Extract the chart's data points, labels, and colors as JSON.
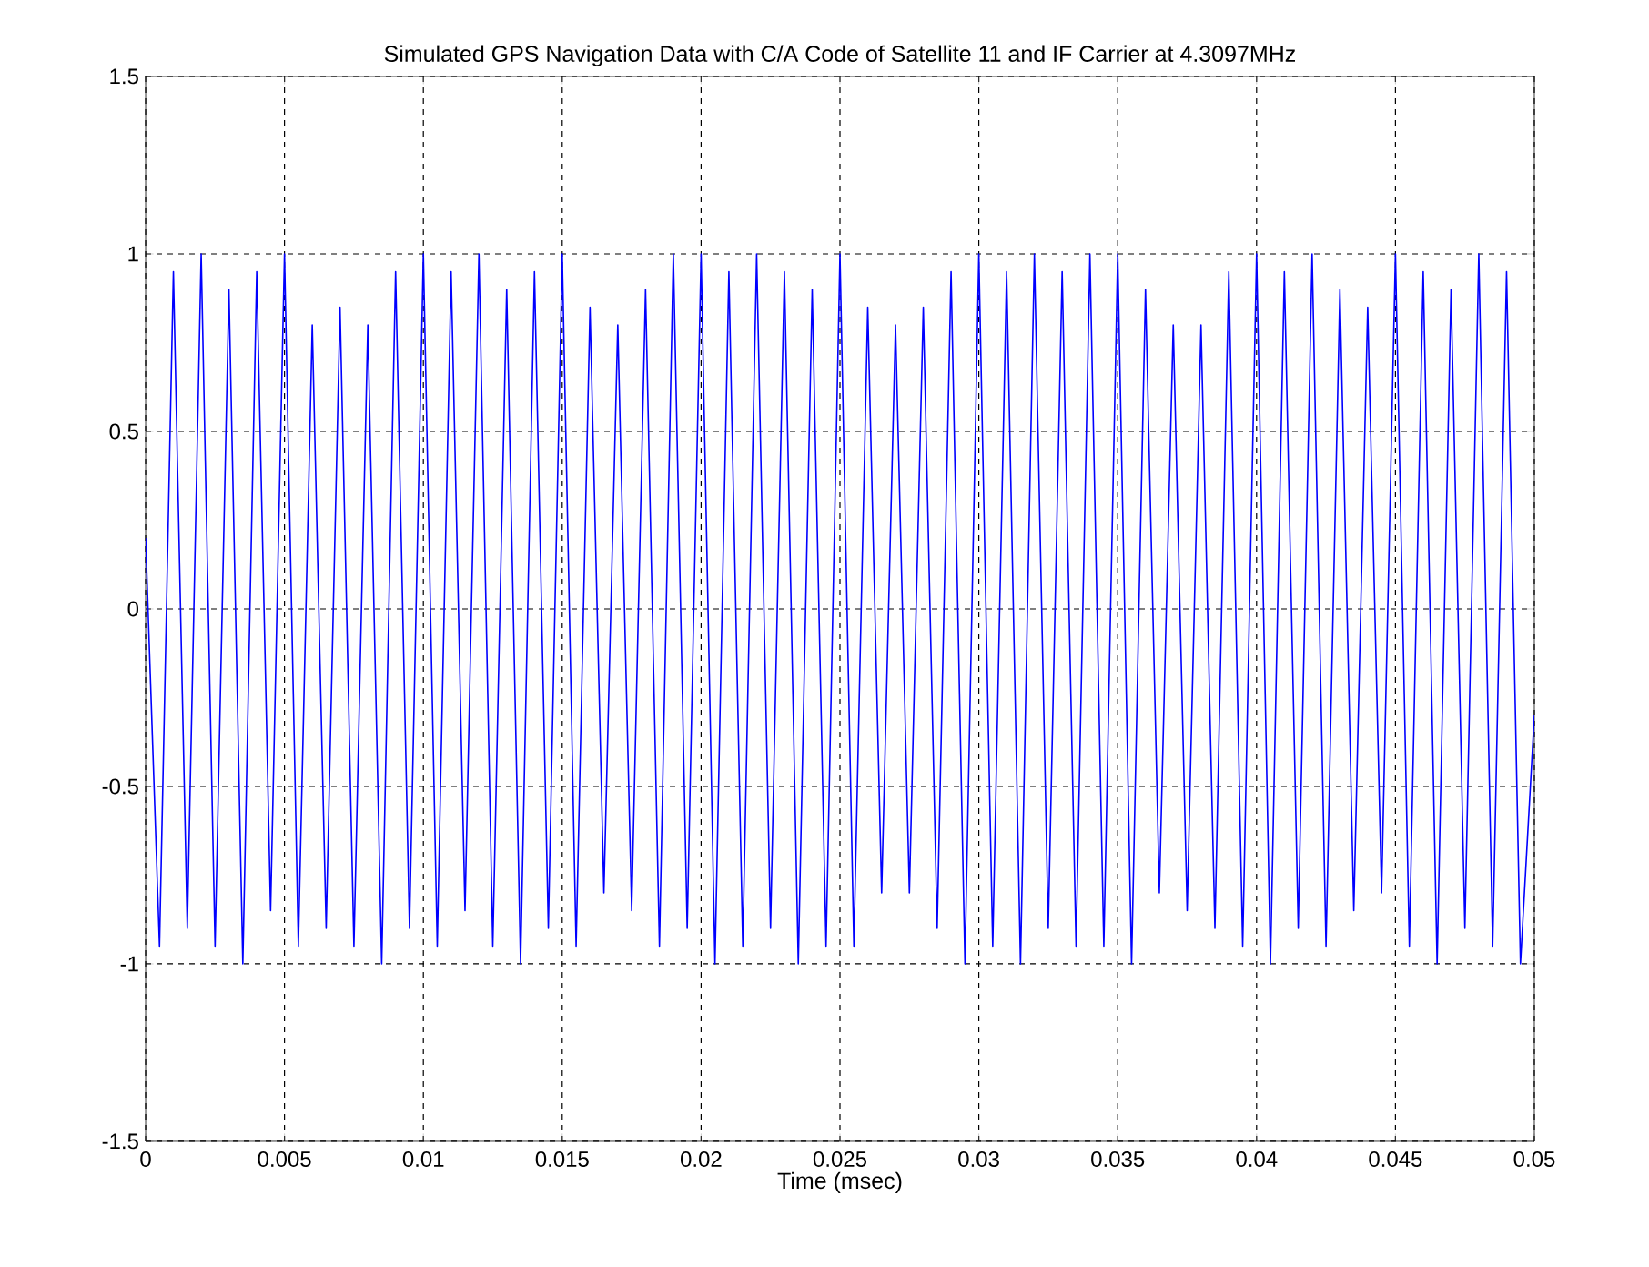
{
  "chart_data": {
    "type": "line",
    "title": "Simulated GPS Navigation Data with C/A Code of Satellite 11 and IF Carrier at 4.3097MHz",
    "xlabel": "Time (msec)",
    "xlim": [
      0,
      0.05
    ],
    "ylim": [
      -1.5,
      1.5
    ],
    "xticks": [
      0,
      0.005,
      0.01,
      0.015,
      0.02,
      0.025,
      0.03,
      0.035,
      0.04,
      0.045,
      0.05
    ],
    "yticks": [
      -1.5,
      -1,
      -0.5,
      0,
      0.5,
      1,
      1.5
    ],
    "grid": true,
    "line_style": "solid",
    "marker": "none",
    "series": [
      {
        "color": "#0000ff",
        "x": [
          0,
          0.0005,
          0.001,
          0.0015,
          0.002,
          0.0025,
          0.003,
          0.0035,
          0.004,
          0.0045,
          0.005,
          0.0055,
          0.006,
          0.0065,
          0.007,
          0.0075,
          0.008,
          0.0085,
          0.009,
          0.0095,
          0.01,
          0.0105,
          0.011,
          0.0115,
          0.012,
          0.0125,
          0.013,
          0.0135,
          0.014,
          0.0145,
          0.015,
          0.0155,
          0.016,
          0.0165,
          0.017,
          0.0175,
          0.018,
          0.0185,
          0.019,
          0.0195,
          0.02,
          0.0205,
          0.021,
          0.0215,
          0.022,
          0.0225,
          0.023,
          0.0235,
          0.024,
          0.0245,
          0.025,
          0.0255,
          0.026,
          0.0265,
          0.027,
          0.0275,
          0.028,
          0.0285,
          0.029,
          0.0295,
          0.03,
          0.0305,
          0.031,
          0.0315,
          0.032,
          0.0325,
          0.033,
          0.0335,
          0.034,
          0.0345,
          0.035,
          0.0355,
          0.036,
          0.0365,
          0.037,
          0.0375,
          0.038,
          0.0385,
          0.039,
          0.0395,
          0.04,
          0.0405,
          0.041,
          0.0415,
          0.042,
          0.0425,
          0.043,
          0.0435,
          0.044,
          0.0445,
          0.045,
          0.0455,
          0.046,
          0.0465,
          0.047,
          0.0475,
          0.048,
          0.0485,
          0.049,
          0.0495,
          0.05
        ],
        "values": [
          0.2,
          -0.95,
          0.95,
          -0.9,
          1.0,
          -0.95,
          0.9,
          -1.0,
          0.95,
          -0.85,
          1.0,
          -0.95,
          0.8,
          -0.9,
          0.85,
          -0.95,
          0.8,
          -1.0,
          0.95,
          -0.9,
          1.0,
          -0.95,
          0.95,
          -0.85,
          1.0,
          -0.95,
          0.9,
          -1.0,
          0.95,
          -0.9,
          1.0,
          -0.95,
          0.85,
          -0.8,
          0.8,
          -0.85,
          0.9,
          -0.95,
          1.0,
          -0.9,
          1.0,
          -1.0,
          0.95,
          -0.95,
          1.0,
          -0.9,
          0.95,
          -1.0,
          0.9,
          -0.95,
          1.0,
          -0.95,
          0.85,
          -0.8,
          0.8,
          -0.8,
          0.85,
          -0.9,
          0.95,
          -1.0,
          1.0,
          -0.95,
          0.95,
          -1.0,
          1.0,
          -0.9,
          0.95,
          -0.95,
          1.0,
          -0.95,
          1.0,
          -1.0,
          0.9,
          -0.8,
          0.8,
          -0.85,
          0.8,
          -0.9,
          0.95,
          -0.95,
          1.0,
          -1.0,
          0.95,
          -0.9,
          1.0,
          -0.95,
          0.9,
          -0.85,
          0.85,
          -0.8,
          1.0,
          -0.95,
          0.95,
          -1.0,
          0.9,
          -0.9,
          1.0,
          -0.95,
          0.95,
          -1.0,
          -0.3
        ]
      }
    ]
  }
}
